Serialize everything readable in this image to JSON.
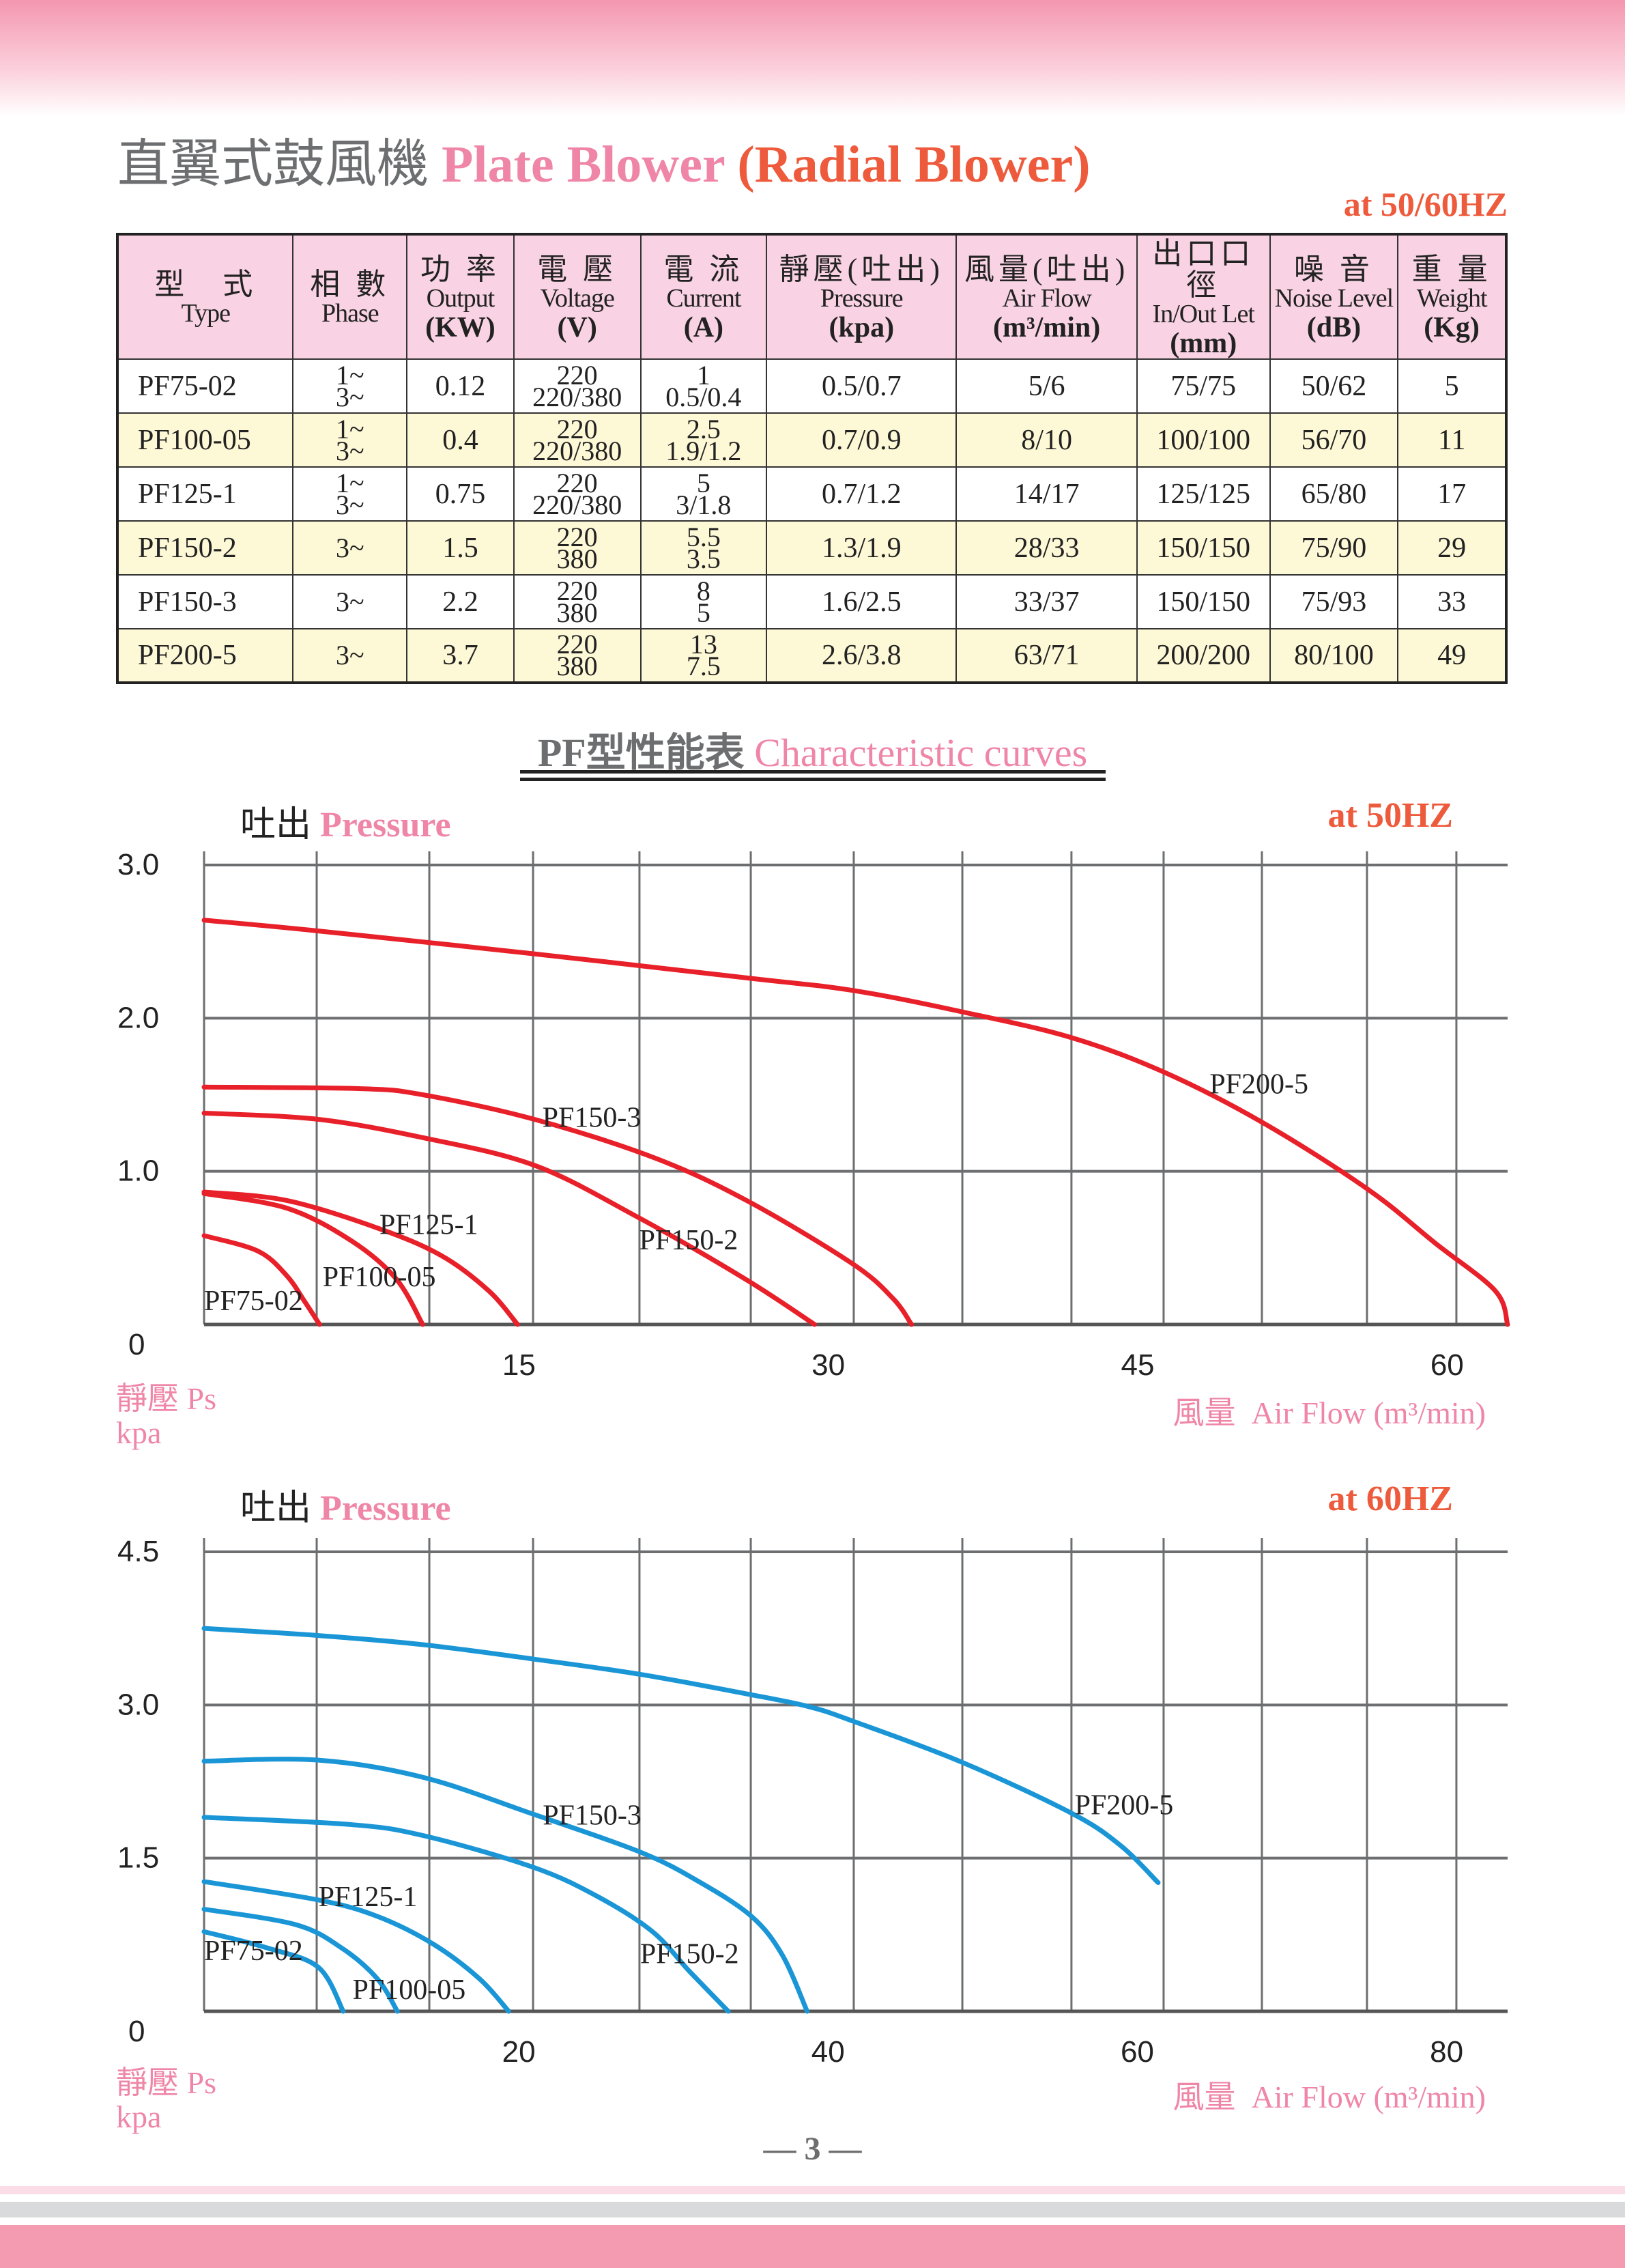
{
  "header": {
    "title_zh": "直翼式鼓風機",
    "title_en": "Plate Blower",
    "title_en2": "(Radial Blower)",
    "frequency": "at 50/60HZ"
  },
  "colors": {
    "accent_pink": "#ef86a8",
    "accent_orange": "#ee5a3c",
    "curve_50hz": "#e8202a",
    "curve_60hz": "#1a96d6",
    "header_bg": "#f9d3e3",
    "alt_row_bg": "#fdf8d6"
  },
  "table": {
    "columns": [
      {
        "zh": "型　式",
        "en": "Type",
        "unit": ""
      },
      {
        "zh": "相 數",
        "en": "Phase",
        "unit": ""
      },
      {
        "zh": "功 率",
        "en": "Output",
        "unit": "(KW)"
      },
      {
        "zh": "電 壓",
        "en": "Voltage",
        "unit": "(V)"
      },
      {
        "zh": "電 流",
        "en": "Current",
        "unit": "(A)"
      },
      {
        "zh": "靜壓(吐出)",
        "en": "Pressure",
        "unit": "(kpa)"
      },
      {
        "zh": "風量(吐出)",
        "en": "Air Flow",
        "unit": "(m³/min)"
      },
      {
        "zh": "出口口徑",
        "en": "In/Out Let",
        "unit": "(mm)"
      },
      {
        "zh": "噪 音",
        "en": "Noise Level",
        "unit": "(dB)"
      },
      {
        "zh": "重 量",
        "en": "Weight",
        "unit": "(Kg)"
      }
    ],
    "rows": [
      {
        "type": "PF75-02",
        "phase": [
          "1~",
          "3~"
        ],
        "output": "0.12",
        "voltage": [
          "220",
          "220/380"
        ],
        "current": [
          "1",
          "0.5/0.4"
        ],
        "pressure": "0.5/0.7",
        "airflow": "5/6",
        "inout": "75/75",
        "noise": "50/62",
        "weight": "5"
      },
      {
        "type": "PF100-05",
        "phase": [
          "1~",
          "3~"
        ],
        "output": "0.4",
        "voltage": [
          "220",
          "220/380"
        ],
        "current": [
          "2.5",
          "1.9/1.2"
        ],
        "pressure": "0.7/0.9",
        "airflow": "8/10",
        "inout": "100/100",
        "noise": "56/70",
        "weight": "11"
      },
      {
        "type": "PF125-1",
        "phase": [
          "1~",
          "3~"
        ],
        "output": "0.75",
        "voltage": [
          "220",
          "220/380"
        ],
        "current": [
          "5",
          "3/1.8"
        ],
        "pressure": "0.7/1.2",
        "airflow": "14/17",
        "inout": "125/125",
        "noise": "65/80",
        "weight": "17"
      },
      {
        "type": "PF150-2",
        "phase": [
          "3~"
        ],
        "output": "1.5",
        "voltage": [
          "220",
          "380"
        ],
        "current": [
          "5.5",
          "3.5"
        ],
        "pressure": "1.3/1.9",
        "airflow": "28/33",
        "inout": "150/150",
        "noise": "75/90",
        "weight": "29"
      },
      {
        "type": "PF150-3",
        "phase": [
          "3~"
        ],
        "output": "2.2",
        "voltage": [
          "220",
          "380"
        ],
        "current": [
          "8",
          "5"
        ],
        "pressure": "1.6/2.5",
        "airflow": "33/37",
        "inout": "150/150",
        "noise": "75/93",
        "weight": "33"
      },
      {
        "type": "PF200-5",
        "phase": [
          "3~"
        ],
        "output": "3.7",
        "voltage": [
          "220",
          "380"
        ],
        "current": [
          "13",
          "7.5"
        ],
        "pressure": "2.6/3.8",
        "airflow": "63/71",
        "inout": "200/200",
        "noise": "80/100",
        "weight": "49"
      }
    ]
  },
  "section": {
    "title_zh": "PF型性能表",
    "title_en": "Characteristic curves"
  },
  "chart_data": [
    {
      "type": "line",
      "title_zh": "吐出",
      "title_en": "Pressure",
      "frequency": "at 50HZ",
      "ylabel_zh": "靜壓 Ps",
      "ylabel_unit": "kpa",
      "xlabel_zh": "風量",
      "xlabel_en": "Air Flow (m³/min)",
      "xlim": [
        0,
        63.2
      ],
      "ylim": [
        0,
        3.0
      ],
      "xticks": [
        15,
        30,
        45,
        60
      ],
      "yticks": [
        "0",
        "1.0",
        "2.0",
        "3.0"
      ],
      "grid": true,
      "series": [
        {
          "name": "PF200-5",
          "points": [
            [
              0,
              2.64
            ],
            [
              5.5,
              2.57
            ],
            [
              16,
              2.42
            ],
            [
              26.5,
              2.26
            ],
            [
              31.5,
              2.18
            ],
            [
              36.8,
              2.04
            ],
            [
              42,
              1.875
            ],
            [
              46.5,
              1.65
            ],
            [
              51.3,
              1.32
            ],
            [
              56.4,
              0.885
            ],
            [
              59.7,
              0.53
            ],
            [
              62.6,
              0.22
            ],
            [
              63.2,
              0
            ]
          ]
        },
        {
          "name": "PF150-3",
          "points": [
            [
              0,
              1.55
            ],
            [
              7.5,
              1.54
            ],
            [
              10.6,
              1.5
            ],
            [
              16,
              1.34
            ],
            [
              21.8,
              1.09
            ],
            [
              26.3,
              0.81
            ],
            [
              31.4,
              0.4
            ],
            [
              33.4,
              0.17
            ],
            [
              34.3,
              0
            ]
          ]
        },
        {
          "name": "PF150-2",
          "points": [
            [
              0,
              1.38
            ],
            [
              5.5,
              1.34
            ],
            [
              10.6,
              1.22
            ],
            [
              16,
              1.04
            ],
            [
              20.9,
              0.71
            ],
            [
              26.2,
              0.3
            ],
            [
              29.6,
              0
            ]
          ]
        },
        {
          "name": "PF125-1",
          "points": [
            [
              0,
              0.865
            ],
            [
              4,
              0.81
            ],
            [
              8.4,
              0.63
            ],
            [
              11.5,
              0.45
            ],
            [
              13.8,
              0.22
            ],
            [
              15.2,
              0
            ]
          ]
        },
        {
          "name": "PF100-05",
          "points": [
            [
              0,
              0.855
            ],
            [
              4,
              0.76
            ],
            [
              7.1,
              0.55
            ],
            [
              9.3,
              0.3
            ],
            [
              10.6,
              0
            ]
          ]
        },
        {
          "name": "PF75-02",
          "points": [
            [
              0,
              0.58
            ],
            [
              2.6,
              0.48
            ],
            [
              4,
              0.32
            ],
            [
              4.9,
              0.145
            ],
            [
              5.6,
              0
            ]
          ]
        }
      ]
    },
    {
      "type": "line",
      "title_zh": "吐出",
      "title_en": "Pressure",
      "frequency": "at 60HZ",
      "ylabel_zh": "靜壓 Ps",
      "ylabel_unit": "kpa",
      "xlabel_zh": "風量",
      "xlabel_en": "Air Flow (m³/min)",
      "xlim": [
        0,
        84.3
      ],
      "ylim": [
        0,
        4.5
      ],
      "xticks": [
        20,
        40,
        60,
        80
      ],
      "yticks": [
        "0",
        "1.5",
        "3.0",
        "4.5"
      ],
      "grid": true,
      "series": [
        {
          "name": "PF200-5",
          "points": [
            [
              0,
              3.75
            ],
            [
              7.4,
              3.68
            ],
            [
              14.2,
              3.59
            ],
            [
              21.3,
              3.45
            ],
            [
              28.2,
              3.3
            ],
            [
              35.4,
              3.1
            ],
            [
              39.2,
              2.98
            ],
            [
              42,
              2.84
            ],
            [
              49,
              2.44
            ],
            [
              56.1,
              1.94
            ],
            [
              59.3,
              1.62
            ],
            [
              61.7,
              1.26
            ]
          ]
        },
        {
          "name": "PF150-3",
          "points": [
            [
              0,
              2.45
            ],
            [
              7.4,
              2.46
            ],
            [
              14.2,
              2.29
            ],
            [
              21.3,
              1.93
            ],
            [
              28.2,
              1.56
            ],
            [
              32,
              1.27
            ],
            [
              35.4,
              0.93
            ],
            [
              37.4,
              0.55
            ],
            [
              39,
              0
            ]
          ]
        },
        {
          "name": "PF150-2",
          "points": [
            [
              0,
              1.9
            ],
            [
              9.4,
              1.83
            ],
            [
              14.2,
              1.72
            ],
            [
              21.3,
              1.41
            ],
            [
              25.5,
              1.12
            ],
            [
              29,
              0.78
            ],
            [
              31.4,
              0.39
            ],
            [
              33.9,
              0
            ]
          ]
        },
        {
          "name": "PF125-1",
          "points": [
            [
              0,
              1.27
            ],
            [
              7.4,
              1.09
            ],
            [
              11.2,
              0.93
            ],
            [
              14.8,
              0.66
            ],
            [
              17.8,
              0.32
            ],
            [
              19.7,
              0
            ]
          ]
        },
        {
          "name": "PF100-05",
          "points": [
            [
              0,
              1.0
            ],
            [
              5.9,
              0.85
            ],
            [
              8.9,
              0.62
            ],
            [
              11.2,
              0.32
            ],
            [
              12.5,
              0
            ]
          ]
        },
        {
          "name": "PF75-02",
          "points": [
            [
              0,
              0.78
            ],
            [
              4.1,
              0.62
            ],
            [
              7.4,
              0.43
            ],
            [
              9,
              0
            ]
          ]
        }
      ]
    }
  ],
  "footer": {
    "page_number": "— 3 —"
  }
}
